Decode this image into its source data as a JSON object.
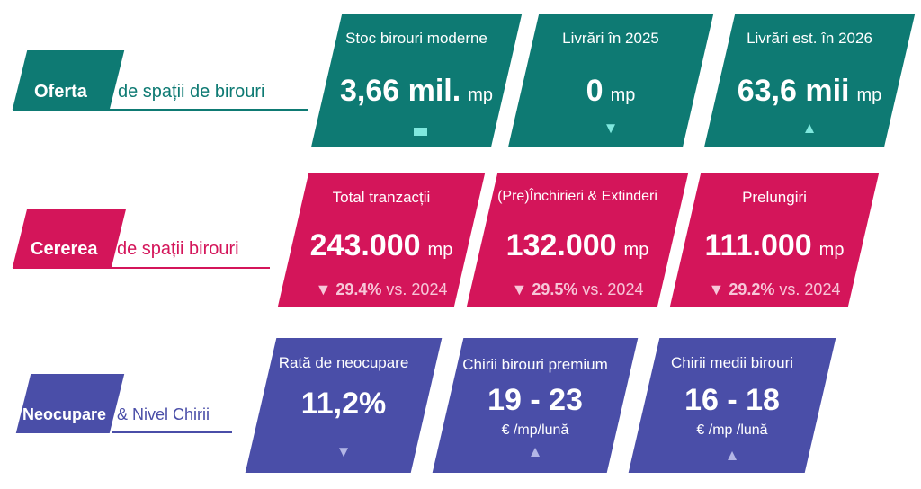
{
  "colors": {
    "supply": "#0e7a73",
    "demand": "#d4155a",
    "vacancy": "#4a4ea8",
    "supply_marker": "#7fe8de",
    "demand_change": "#f7c6d8",
    "vacancy_marker": "#b3b6e6"
  },
  "sections": {
    "supply": {
      "label": "Oferta",
      "description": "de  spații de birouri"
    },
    "demand": {
      "label": "Cererea",
      "description": "de spații birouri"
    },
    "vacancy": {
      "label": "Neocupare",
      "description": "& Nivel Chirii"
    }
  },
  "supply_cards": [
    {
      "title": "Stoc birouri moderne",
      "value": "3,66 mil.",
      "unit": "mp",
      "trend": "stable"
    },
    {
      "title": "Livrări în 2025",
      "value": "0",
      "unit": "mp",
      "trend": "down"
    },
    {
      "title": "Livrări est. în 2026",
      "value": "63,6 mii",
      "unit": "mp",
      "trend": "up"
    }
  ],
  "demand_cards": [
    {
      "title": "Total tranzacții",
      "value": "243.000",
      "unit": "mp",
      "change": "29.4%",
      "change_suffix": "vs. 2024",
      "trend": "down"
    },
    {
      "title": "(Pre)Închirieri & Extinderi",
      "value": "132.000",
      "unit": "mp",
      "change": "29.5%",
      "change_suffix": "vs. 2024",
      "trend": "down"
    },
    {
      "title": "Prelungiri",
      "value": "111.000",
      "unit": "mp",
      "change": "29.2%",
      "change_suffix": "vs. 2024",
      "trend": "down"
    }
  ],
  "vacancy_cards": [
    {
      "title": "Rată de neocupare",
      "value": "11,2%",
      "sub": "",
      "trend": "down"
    },
    {
      "title": "Chirii birouri premium",
      "value": "19 - 23",
      "sub": "€ /mp/lună",
      "trend": "up"
    },
    {
      "title": "Chirii medii birouri",
      "value": "16 - 18",
      "sub": "€ /mp /lună",
      "trend": "up"
    }
  ]
}
